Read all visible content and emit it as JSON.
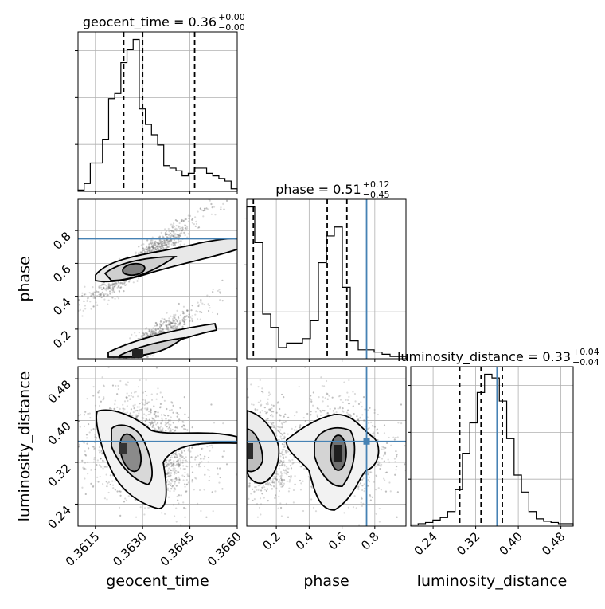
{
  "truth_color": "#4682b4",
  "chart_data": {
    "type": "corner",
    "parameters": [
      "geocent_time",
      "phase",
      "luminosity_distance"
    ],
    "axis_labels": [
      "geocent_time",
      "phase",
      "luminosity_distance"
    ],
    "titles": [
      {
        "param": "geocent_time",
        "text": "geocent_time = 0.36",
        "sup": "+0.00",
        "sub": "−0.00"
      },
      {
        "param": "phase",
        "text": "phase = 0.51",
        "sup": "+0.12",
        "sub": "−0.45"
      },
      {
        "param": "luminosity_distance",
        "text": "luminosity_distance = 0.33",
        "sup": "+0.04",
        "sub": "−0.04"
      }
    ],
    "ranges": {
      "geocent_time": [
        0.36095,
        0.366
      ],
      "phase": [
        0.02,
        0.99
      ],
      "luminosity_distance": [
        0.198,
        0.503
      ]
    },
    "ticks": {
      "geocent_time": [
        "0.3615",
        "0.3630",
        "0.3645",
        "0.3660"
      ],
      "phase": [
        "0.2",
        "0.4",
        "0.6",
        "0.8"
      ],
      "luminosity_distance": [
        "0.24",
        "0.32",
        "0.40",
        "0.48"
      ]
    },
    "truths": {
      "phase": 0.75,
      "luminosity_distance": 0.36
    },
    "quantiles": {
      "geocent_time": [
        0.3624,
        0.363,
        0.36465
      ],
      "phase": [
        0.06,
        0.51,
        0.63
      ],
      "luminosity_distance": [
        0.29,
        0.33,
        0.37
      ]
    },
    "histograms": {
      "geocent_time": {
        "edges_range": [
          0.36095,
          0.366
        ],
        "counts": [
          0.5,
          3,
          11,
          11,
          20,
          36,
          38,
          50,
          55,
          59,
          32,
          26,
          22,
          18,
          10,
          9,
          8,
          6,
          7,
          9,
          9,
          7,
          6,
          5,
          4,
          1
        ]
      },
      "phase": {
        "edges_range": [
          0.02,
          0.99
        ],
        "counts": [
          68,
          52,
          20,
          14,
          5,
          7,
          7,
          9,
          17,
          43,
          55,
          59,
          32,
          8,
          4,
          4,
          3,
          2,
          1,
          1
        ]
      },
      "luminosity_distance": {
        "edges_range": [
          0.198,
          0.503
        ],
        "counts": [
          1,
          2,
          3,
          5,
          7,
          12,
          30,
          60,
          85,
          110,
          125,
          122,
          103,
          72,
          42,
          28,
          12,
          6,
          4,
          3,
          2,
          2
        ]
      }
    },
    "grid": true
  }
}
